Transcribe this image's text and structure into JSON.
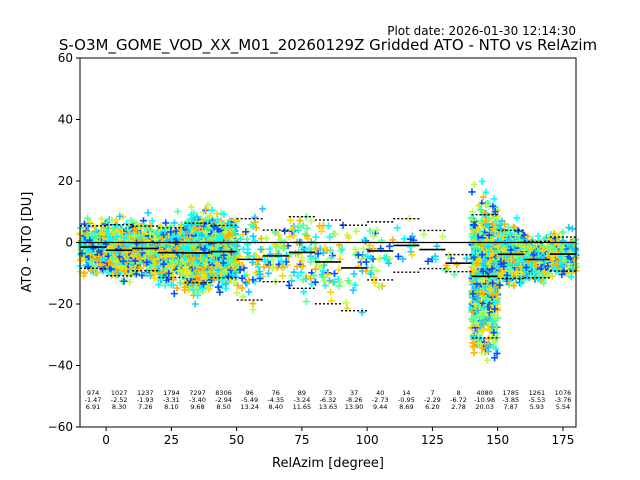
{
  "header": {
    "plot_date": "Plot date: 2026-01-30 12:14:30",
    "title": "S-O3M_GOME_VOD_XX_M01_20260129Z Gridded ATO - NTO vs RelAzim"
  },
  "chart_data": {
    "type": "scatter",
    "xlabel": "RelAzim [degree]",
    "ylabel": "ATO - NTO [DU]",
    "xlim": [
      -10,
      180
    ],
    "ylim": [
      -60,
      60
    ],
    "xticks": [
      0,
      25,
      50,
      75,
      100,
      125,
      150,
      175
    ],
    "yticks": [
      -60,
      -40,
      -20,
      0,
      20,
      40,
      60
    ],
    "grid": false,
    "marker": "plus",
    "point_colors": [
      "#00ffff",
      "#1ec8ff",
      "#0050ff",
      "#55ff9a",
      "#b4ff50",
      "#ffd700",
      "#ffb000"
    ],
    "zero_line": true,
    "bins": [
      {
        "center": -5,
        "n": "974",
        "mean": "-1.47",
        "std": "6.91",
        "mean_v": -1.47,
        "std_v": 6.91
      },
      {
        "center": 5,
        "n": "1027",
        "mean": "-2.52",
        "std": "8.30",
        "mean_v": -2.52,
        "std_v": 8.3
      },
      {
        "center": 15,
        "n": "1237",
        "mean": "-1.93",
        "std": "7.26",
        "mean_v": -1.93,
        "std_v": 7.26
      },
      {
        "center": 25,
        "n": "1794",
        "mean": "-3.31",
        "std": "8.10",
        "mean_v": -3.31,
        "std_v": 8.1
      },
      {
        "center": 35,
        "n": "7297",
        "mean": "-3.40",
        "std": "9.68",
        "mean_v": -3.4,
        "std_v": 9.68
      },
      {
        "center": 45,
        "n": "8306",
        "mean": "-2.94",
        "std": "8.50",
        "mean_v": -2.94,
        "std_v": 8.5
      },
      {
        "center": 55,
        "n": "96",
        "mean": "-5.49",
        "std": "13.24",
        "mean_v": -5.49,
        "std_v": 13.24
      },
      {
        "center": 65,
        "n": "76",
        "mean": "-4.35",
        "std": "8.40",
        "mean_v": -4.35,
        "std_v": 8.4
      },
      {
        "center": 75,
        "n": "89",
        "mean": "-3.24",
        "std": "11.65",
        "mean_v": -3.24,
        "std_v": 11.65
      },
      {
        "center": 85,
        "n": "73",
        "mean": "-6.32",
        "std": "13.63",
        "mean_v": -6.32,
        "std_v": 13.63
      },
      {
        "center": 95,
        "n": "37",
        "mean": "-8.26",
        "std": "13.90",
        "mean_v": -8.26,
        "std_v": 13.9
      },
      {
        "center": 105,
        "n": "40",
        "mean": "-2.73",
        "std": "9.44",
        "mean_v": -2.73,
        "std_v": 9.44
      },
      {
        "center": 115,
        "n": "14",
        "mean": "-0.95",
        "std": "8.69",
        "mean_v": -0.95,
        "std_v": 8.69
      },
      {
        "center": 125,
        "n": "7",
        "mean": "-2.29",
        "std": "6.20",
        "mean_v": -2.29,
        "std_v": 6.2
      },
      {
        "center": 135,
        "n": "8",
        "mean": "-6.72",
        "std": "2.78",
        "mean_v": -6.72,
        "std_v": 2.78
      },
      {
        "center": 145,
        "n": "4080",
        "mean": "-10.98",
        "std": "20.03",
        "mean_v": -10.98,
        "std_v": 20.03
      },
      {
        "center": 155,
        "n": "1785",
        "mean": "-3.85",
        "std": "7.87",
        "mean_v": -3.85,
        "std_v": 7.87
      },
      {
        "center": 165,
        "n": "1261",
        "mean": "-5.53",
        "std": "5.93",
        "mean_v": -5.53,
        "std_v": 5.93
      },
      {
        "center": 175,
        "n": "1076",
        "mean": "-3.76",
        "std": "5.54",
        "mean_v": -3.76,
        "std_v": 5.54
      }
    ]
  }
}
